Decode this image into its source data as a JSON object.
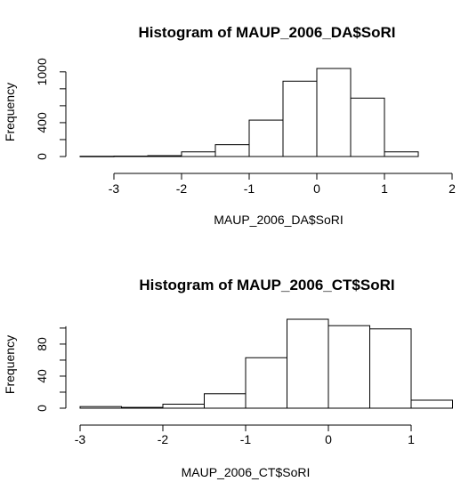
{
  "chart_data": [
    {
      "type": "histogram",
      "title": "Histogram of MAUP_2006_DA$SoRI",
      "xlabel": "MAUP_2006_DA$SoRI",
      "ylabel": "Frequency",
      "bin_edges": [
        -3.5,
        -3.0,
        -2.5,
        -2.0,
        -1.5,
        -1.0,
        -0.5,
        0.0,
        0.5,
        1.0,
        1.5
      ],
      "values": [
        3,
        5,
        10,
        55,
        140,
        430,
        890,
        1040,
        690,
        55
      ],
      "x_ticks": [
        -3,
        -2,
        -1,
        0,
        1,
        2
      ],
      "y_ticks": [
        0,
        400,
        1000
      ],
      "xlim": [
        -3.5,
        2.0
      ],
      "ylim": [
        0,
        1040
      ]
    },
    {
      "type": "histogram",
      "title": "Histogram of MAUP_2006_CT$SoRI",
      "xlabel": "MAUP_2006_CT$SoRI",
      "ylabel": "Frequency",
      "bin_edges": [
        -3.0,
        -2.5,
        -2.0,
        -1.5,
        -1.0,
        -0.5,
        0.0,
        0.5,
        1.0,
        1.5
      ],
      "values": [
        2,
        1,
        5,
        18,
        63,
        111,
        103,
        99,
        10
      ],
      "x_ticks": [
        -3,
        -2,
        -1,
        0,
        1
      ],
      "y_ticks": [
        0,
        40,
        80
      ],
      "xlim": [
        -3.0,
        1.5
      ],
      "ylim": [
        0,
        111
      ]
    }
  ]
}
